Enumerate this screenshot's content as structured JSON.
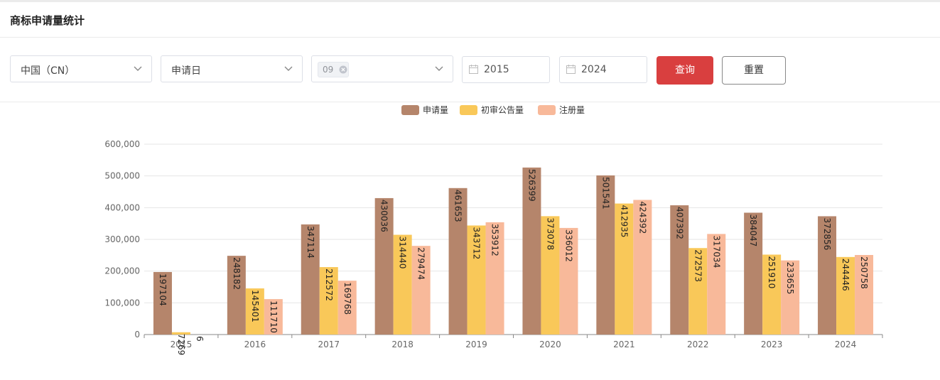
{
  "page": {
    "title": "商标申请量统计"
  },
  "filters": {
    "country": "中国（CN）",
    "date_type": "申请日",
    "class_tag": "09",
    "start_year": "2015",
    "end_year": "2024",
    "query_label": "查询",
    "reset_label": "重置"
  },
  "chart_data": {
    "type": "bar",
    "categories": [
      "2015",
      "2016",
      "2017",
      "2018",
      "2019",
      "2020",
      "2021",
      "2022",
      "2023",
      "2024"
    ],
    "series": [
      {
        "name": "申请量",
        "color": "#b5856b",
        "values": [
          197104,
          248182,
          347114,
          430036,
          461653,
          526399,
          501541,
          407392,
          384047,
          372856
        ]
      },
      {
        "name": "初审公告量",
        "color": "#f9c859",
        "values": [
          7269,
          145401,
          212572,
          314440,
          343712,
          373078,
          412935,
          272573,
          251910,
          244446
        ]
      },
      {
        "name": "注册量",
        "color": "#f8b99a",
        "values": [
          6,
          111710,
          169768,
          279474,
          353912,
          336012,
          424392,
          317034,
          233655,
          250758
        ]
      }
    ],
    "y_ticks": [
      "0",
      "100,000",
      "200,000",
      "300,000",
      "400,000",
      "500,000",
      "600,000"
    ],
    "ylim": [
      0,
      600000
    ],
    "grid": true,
    "legend_position": "top-center"
  }
}
